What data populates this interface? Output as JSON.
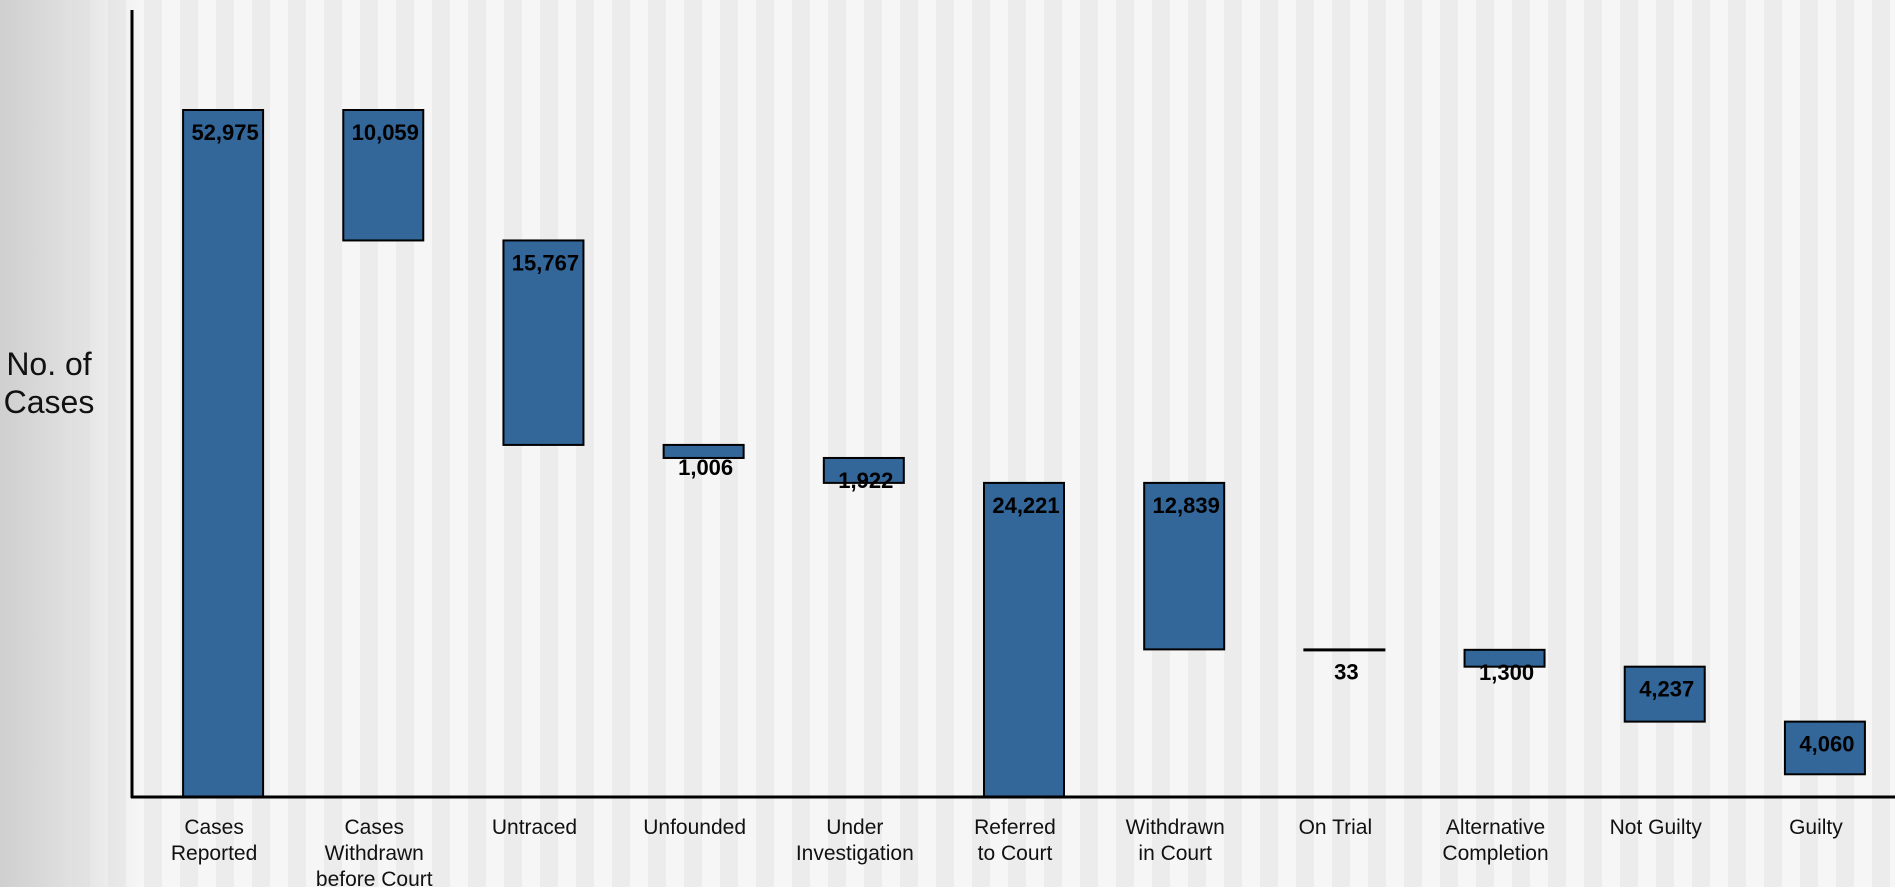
{
  "chart_data": {
    "type": "waterfall",
    "ylabel": "No. of\nCases",
    "xlabel": "",
    "ylim": [
      0,
      63000
    ],
    "bar_color": "#336699",
    "grid": false,
    "categories": [
      "Cases\nReported",
      "Cases\nWithdrawn\nbefore Court",
      "Untraced",
      "Unfounded",
      "Under\nInvestigation",
      "Referred\nto Court",
      "Withdrawn\nin Court",
      "On Trial",
      "Alternative\nCompletion",
      "Not Guilty",
      "Guilty"
    ],
    "values": [
      52975,
      10059,
      15767,
      1006,
      1922,
      24221,
      12839,
      33,
      1300,
      4237,
      4060
    ],
    "labels": [
      "52,975",
      "10,059",
      "15,767",
      "1,006",
      "1,922",
      "24,221",
      "12,839",
      "33",
      "1,300",
      "4,237",
      "4,060"
    ],
    "bar_kind": [
      "total",
      "decrease",
      "decrease",
      "decrease",
      "decrease",
      "total",
      "decrease",
      "decrease",
      "decrease",
      "decrease",
      "decrease"
    ]
  }
}
